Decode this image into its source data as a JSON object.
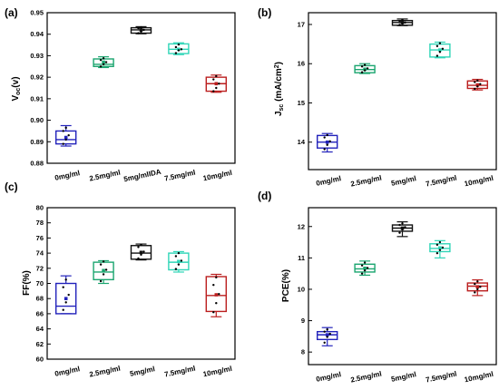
{
  "chart_data": [
    {
      "type": "box",
      "panel_label": "(a)",
      "ylabel": "V",
      "ylabel_sub": "oc",
      "ylabel_suffix": "(v)",
      "categories": [
        "0mg/ml",
        "2.5mg/ml",
        "5mg/mlIDA",
        "7.5mg/ml",
        "10mg/ml"
      ],
      "ylim": [
        0.88,
        0.95
      ],
      "yticks": [
        "0.88",
        "0.89",
        "0.90",
        "0.91",
        "0.92",
        "0.93",
        "0.94",
        "0.95"
      ],
      "boxes": [
        {
          "q1": 0.889,
          "median": 0.891,
          "q3": 0.895,
          "low": 0.888,
          "high": 0.8975,
          "mean": 0.892,
          "points": [
            0.889,
            0.891,
            0.893,
            0.895,
            0.8965
          ]
        },
        {
          "q1": 0.925,
          "median": 0.926,
          "q3": 0.9285,
          "low": 0.9245,
          "high": 0.9295,
          "mean": 0.927,
          "points": [
            0.925,
            0.926,
            0.927,
            0.928,
            0.9288
          ]
        },
        {
          "q1": 0.9405,
          "median": 0.942,
          "q3": 0.943,
          "low": 0.9402,
          "high": 0.9435,
          "mean": 0.942,
          "points": [
            0.9405,
            0.9412,
            0.942,
            0.9428,
            0.9432
          ]
        },
        {
          "q1": 0.931,
          "median": 0.933,
          "q3": 0.9355,
          "low": 0.9305,
          "high": 0.936,
          "mean": 0.933,
          "points": [
            0.9312,
            0.9325,
            0.933,
            0.934,
            0.9352
          ]
        },
        {
          "q1": 0.9135,
          "median": 0.917,
          "q3": 0.92,
          "low": 0.913,
          "high": 0.921,
          "mean": 0.917,
          "points": [
            0.9135,
            0.915,
            0.917,
            0.919,
            0.9205
          ]
        }
      ]
    },
    {
      "type": "box",
      "panel_label": "(b)",
      "ylabel": "J",
      "ylabel_sub": "sc",
      "ylabel_suffix": " (mA/cm",
      "ylabel_sup": "2",
      "ylabel_end": ")",
      "categories": [
        "0mg/ml",
        "2.5mg/ml",
        "5mg/ml",
        "7.5mg/ml",
        "10mg/ml"
      ],
      "ylim": [
        13.3,
        17.3
      ],
      "yticks": [
        "14",
        "15",
        "16",
        "17"
      ],
      "ytick_values": [
        14,
        15,
        16,
        17
      ],
      "boxes": [
        {
          "q1": 13.85,
          "median": 14.0,
          "q3": 14.17,
          "low": 13.75,
          "high": 14.22,
          "mean": 14.0,
          "points": [
            13.82,
            13.93,
            14.02,
            14.12,
            14.18
          ]
        },
        {
          "q1": 15.77,
          "median": 15.85,
          "q3": 15.95,
          "low": 15.75,
          "high": 16.0,
          "mean": 15.86,
          "points": [
            15.78,
            15.83,
            15.88,
            15.93,
            15.97
          ]
        },
        {
          "q1": 16.98,
          "median": 17.05,
          "q3": 17.1,
          "low": 16.97,
          "high": 17.14,
          "mean": 17.05,
          "points": [
            16.99,
            17.02,
            17.05,
            17.08,
            17.12
          ]
        },
        {
          "q1": 16.17,
          "median": 16.35,
          "q3": 16.5,
          "low": 16.15,
          "high": 16.55,
          "mean": 16.35,
          "points": [
            16.2,
            16.3,
            16.38,
            16.45,
            16.52
          ]
        },
        {
          "q1": 15.37,
          "median": 15.45,
          "q3": 15.56,
          "low": 15.33,
          "high": 15.6,
          "mean": 15.46,
          "points": [
            15.36,
            15.42,
            15.48,
            15.53,
            15.57
          ]
        }
      ]
    },
    {
      "type": "box",
      "panel_label": "(c)",
      "ylabel": "FF(%)",
      "categories": [
        "0mg/ml",
        "2.5mg/ml",
        "5mg/ml",
        "7.5mg/ml",
        "10mg/ml"
      ],
      "ylim": [
        60,
        80
      ],
      "yticks": [
        "60",
        "62",
        "64",
        "66",
        "68",
        "70",
        "72",
        "74",
        "76",
        "78",
        "80"
      ],
      "ytick_values": [
        60,
        62,
        64,
        66,
        68,
        70,
        72,
        74,
        76,
        78,
        80
      ],
      "boxes": [
        {
          "q1": 66.0,
          "median": 67.0,
          "q3": 70.0,
          "low": 66.0,
          "high": 71.0,
          "mean": 68.0,
          "points": [
            66.5,
            67.5,
            68.5,
            69.5,
            70.5
          ]
        },
        {
          "q1": 70.5,
          "median": 71.5,
          "q3": 72.8,
          "low": 70.0,
          "high": 73.0,
          "mean": 71.7,
          "points": [
            70.3,
            71.2,
            71.8,
            72.5,
            72.9
          ]
        },
        {
          "q1": 73.2,
          "median": 74.0,
          "q3": 75.0,
          "low": 73.1,
          "high": 75.2,
          "mean": 74.1,
          "points": [
            73.3,
            73.8,
            74.2,
            74.8,
            75.1
          ]
        },
        {
          "q1": 71.8,
          "median": 72.8,
          "q3": 74.0,
          "low": 71.5,
          "high": 74.2,
          "mean": 72.9,
          "points": [
            71.9,
            72.5,
            73.0,
            73.6,
            74.0
          ]
        },
        {
          "q1": 66.3,
          "median": 68.4,
          "q3": 70.9,
          "low": 65.6,
          "high": 71.2,
          "mean": 68.5,
          "points": [
            66.2,
            67.4,
            68.6,
            69.8,
            70.8
          ]
        }
      ]
    },
    {
      "type": "box",
      "panel_label": "(d)",
      "ylabel": "PCE(%)",
      "categories": [
        "0mg/ml",
        "2.5mg/ml",
        "5mg/ml",
        "7.5mg/ml",
        "10mg/ml"
      ],
      "ylim": [
        7.6,
        12.6
      ],
      "yticks": [
        "8",
        "9",
        "10",
        "11",
        "12"
      ],
      "ytick_values": [
        8,
        9,
        10,
        11,
        12
      ],
      "boxes": [
        {
          "q1": 8.4,
          "median": 8.55,
          "q3": 8.65,
          "low": 8.2,
          "high": 8.78,
          "mean": 8.55,
          "points": [
            8.3,
            8.48,
            8.58,
            8.65,
            8.72
          ]
        },
        {
          "q1": 10.55,
          "median": 10.65,
          "q3": 10.8,
          "low": 10.45,
          "high": 10.9,
          "mean": 10.67,
          "points": [
            10.5,
            10.6,
            10.68,
            10.76,
            10.85
          ]
        },
        {
          "q1": 11.85,
          "median": 11.95,
          "q3": 12.05,
          "low": 11.68,
          "high": 12.15,
          "mean": 11.95,
          "points": [
            11.8,
            11.9,
            11.98,
            12.05,
            12.1
          ]
        },
        {
          "q1": 11.2,
          "median": 11.3,
          "q3": 11.45,
          "low": 11.0,
          "high": 11.55,
          "mean": 11.32,
          "points": [
            11.15,
            11.25,
            11.33,
            11.42,
            11.5
          ]
        },
        {
          "q1": 9.95,
          "median": 10.1,
          "q3": 10.2,
          "low": 9.8,
          "high": 10.3,
          "mean": 10.08,
          "points": [
            9.9,
            10.0,
            10.08,
            10.17,
            10.25
          ]
        }
      ]
    }
  ],
  "colors": [
    "#2222bb",
    "#1aa56f",
    "#111111",
    "#2fd5b7",
    "#bb1f1f"
  ]
}
